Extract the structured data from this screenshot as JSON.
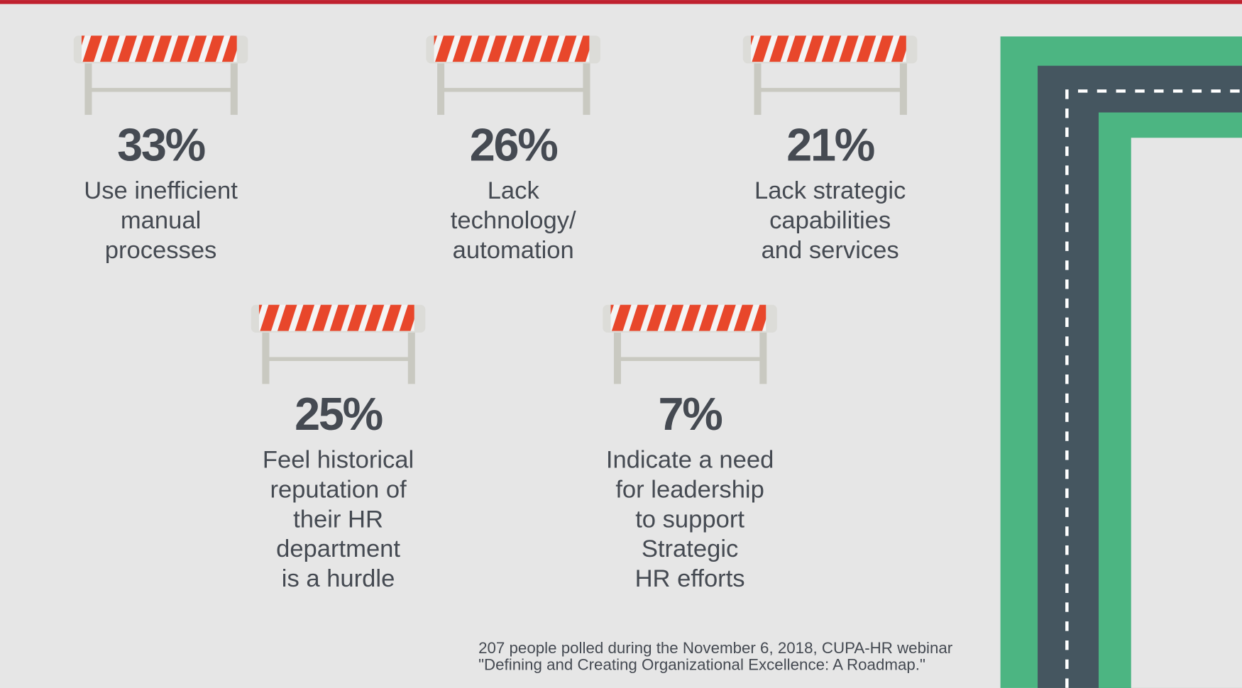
{
  "items": [
    {
      "percent": "33%",
      "lines": [
        "Use inefficient",
        "manual",
        "processes"
      ]
    },
    {
      "percent": "26%",
      "lines": [
        "Lack",
        "technology/",
        "automation"
      ]
    },
    {
      "percent": "21%",
      "lines": [
        "Lack strategic",
        "capabilities",
        "and services"
      ]
    },
    {
      "percent": "25%",
      "lines": [
        "Feel historical",
        "reputation of",
        "their HR",
        "department",
        "is a hurdle"
      ]
    },
    {
      "percent": "7%",
      "lines": [
        "Indicate a need",
        "for leadership",
        "to support",
        "Strategic",
        "HR efforts"
      ]
    }
  ],
  "footnote": [
    "207 people polled during the November 6, 2018, CUPA-HR webinar",
    "\"Defining and Creating Organizational Excellence: A Roadmap.\""
  ]
}
